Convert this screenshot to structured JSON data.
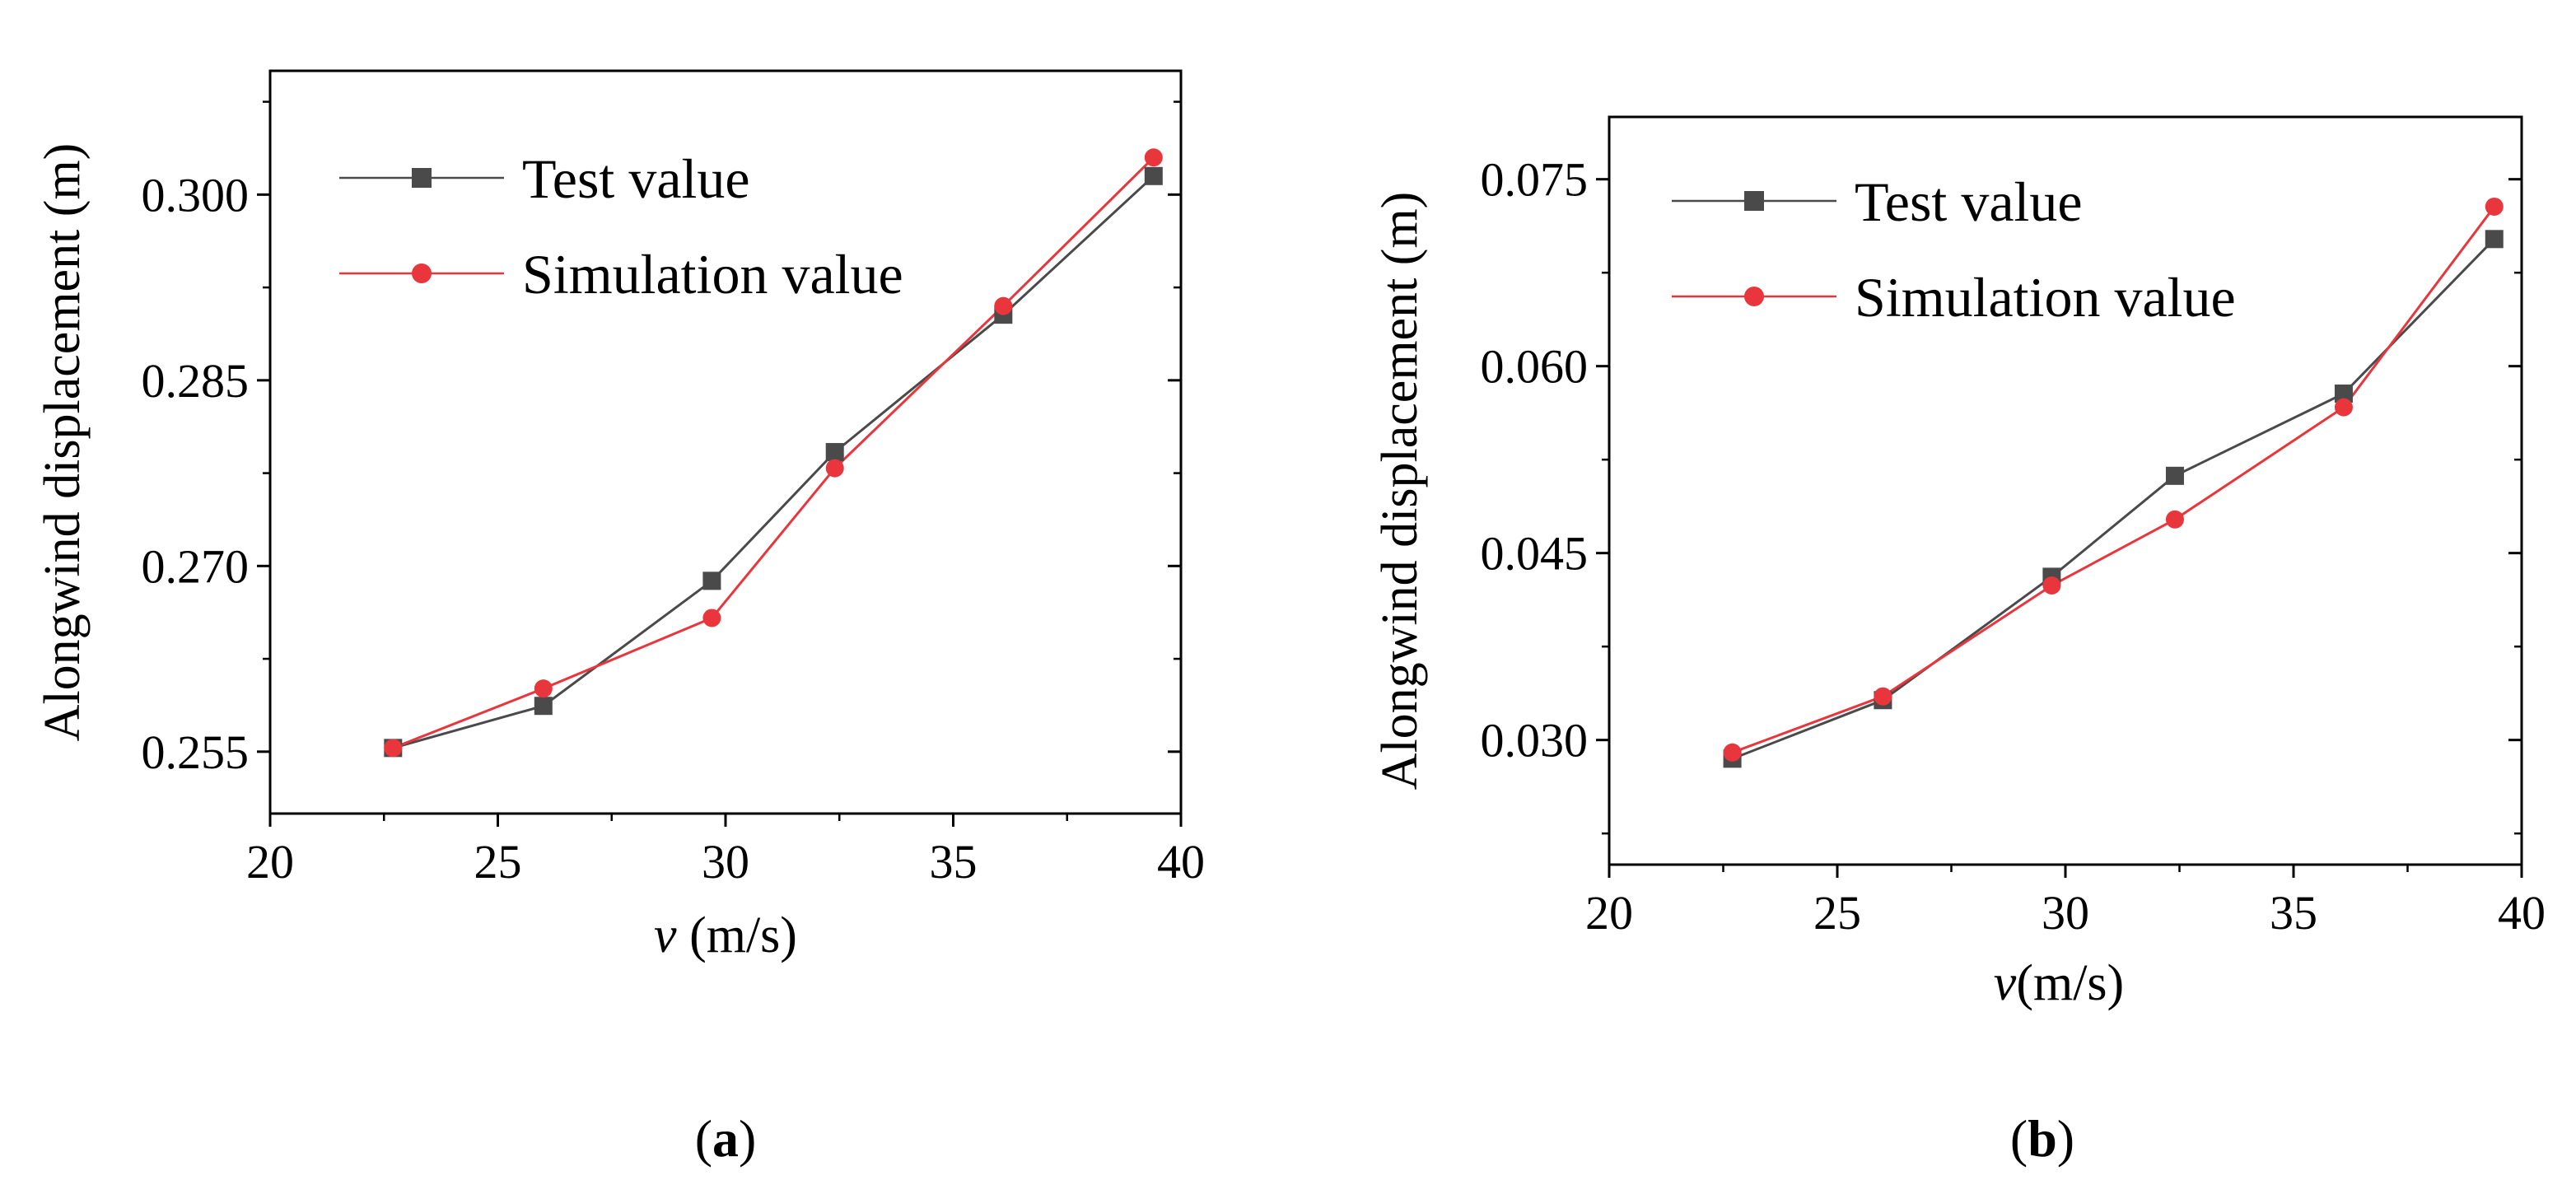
{
  "chart_data": [
    {
      "type": "line",
      "panel_label": "a",
      "xlabel_var": "v",
      "xlabel_unit": " (m/s)",
      "ylabel": "Alongwind displacement (m)",
      "xlim": [
        20,
        40
      ],
      "ylim": [
        0.25,
        0.31
      ],
      "xticks": [
        20,
        25,
        30,
        35,
        40
      ],
      "xtick_labels": [
        "20",
        "25",
        "30",
        "35",
        "40"
      ],
      "yticks": [
        0.255,
        0.27,
        0.285,
        0.3
      ],
      "ytick_labels": [
        "0.255",
        "0.270",
        "0.285",
        "0.300"
      ],
      "legend_position": "top-left",
      "series": [
        {
          "name": "Test value",
          "marker": "square",
          "color": "#4a4a4a",
          "x": [
            22.7,
            26.0,
            29.7,
            32.4,
            36.1,
            39.4
          ],
          "y": [
            0.2553,
            0.2587,
            0.2688,
            0.2792,
            0.2903,
            0.3015
          ]
        },
        {
          "name": "Simulation value",
          "marker": "circle",
          "color": "#e8363c",
          "x": [
            22.7,
            26.0,
            29.7,
            32.4,
            36.1,
            39.4
          ],
          "y": [
            0.2553,
            0.2601,
            0.2658,
            0.2779,
            0.291,
            0.303
          ]
        }
      ]
    },
    {
      "type": "line",
      "panel_label": "b",
      "xlabel_var": "v",
      "xlabel_unit": "(m/s)",
      "ylabel": "Alongwind displacement (m)",
      "xlim": [
        20,
        40
      ],
      "ylim": [
        0.02,
        0.08
      ],
      "xticks": [
        20,
        25,
        30,
        35,
        40
      ],
      "xtick_labels": [
        "20",
        "25",
        "30",
        "35",
        "40"
      ],
      "yticks": [
        0.03,
        0.045,
        0.06,
        0.075
      ],
      "ytick_labels": [
        "0.030",
        "0.045",
        "0.060",
        "0.075"
      ],
      "legend_position": "top-left",
      "series": [
        {
          "name": "Test value",
          "marker": "square",
          "color": "#4a4a4a",
          "x": [
            22.7,
            26.0,
            29.7,
            32.4,
            36.1,
            39.4
          ],
          "y": [
            0.0285,
            0.0332,
            0.0431,
            0.0512,
            0.0578,
            0.0702
          ]
        },
        {
          "name": "Simulation value",
          "marker": "circle",
          "color": "#e8363c",
          "x": [
            22.7,
            26.0,
            29.7,
            32.4,
            36.1,
            39.4
          ],
          "y": [
            0.029,
            0.0335,
            0.0424,
            0.0477,
            0.0567,
            0.0728
          ]
        }
      ]
    }
  ]
}
